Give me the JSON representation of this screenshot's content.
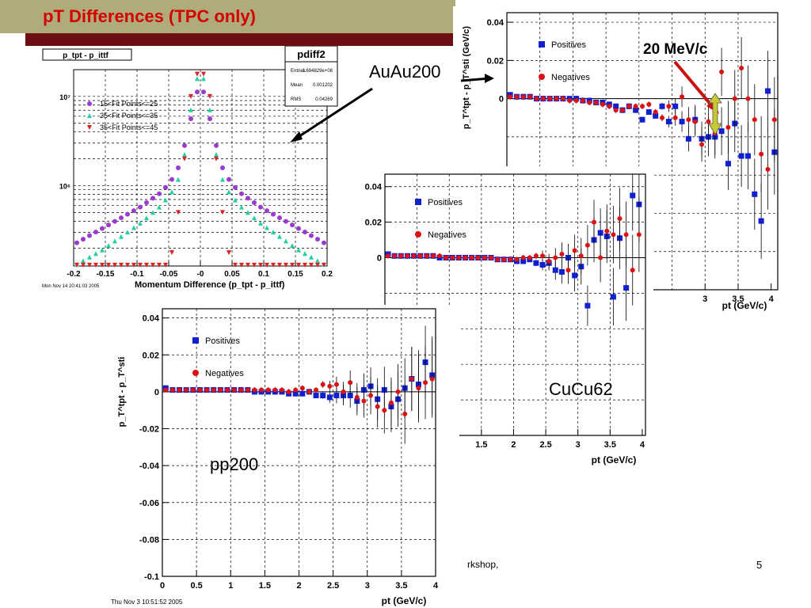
{
  "slide": {
    "title": "pT Differences (TPC only)",
    "footer_left": "rkshop,",
    "page_number": "5",
    "annotation_energy": "20 MeV/c",
    "label_auau": "AuAu200",
    "label_cucu": "CuCu62",
    "label_pp": "pp200",
    "arrow_color": "#cc1111",
    "arrow_box_color": "#c8c832"
  },
  "chart_data": [
    {
      "id": "pdiff",
      "type": "scatter",
      "canvas_title": "p_tpt - p_ittf",
      "stats_title": "pdiff2",
      "stats": [
        [
          "Entries",
          "1.694829e+08"
        ],
        [
          "Mean",
          "0.001202"
        ],
        [
          "RMS",
          "0.04269"
        ]
      ],
      "xlabel": "Momentum Difference (p_tpt - p_ittf)",
      "timestamp": "Mon Nov 14 20:41:03 2005",
      "xlim": [
        -0.2,
        0.2
      ],
      "ylog": true,
      "ylim_log10": [
        5.1,
        7.3
      ],
      "xticks": [
        "-0.2",
        "-0.15",
        "-0.1",
        "-0.05",
        "-0",
        "0.05",
        "0.1",
        "0.15",
        "0.2"
      ],
      "yticks": [
        "10⁶",
        "10⁷"
      ],
      "series": [
        {
          "name": "15<Fit Points<=25",
          "color": "#9a3ad0",
          "marker": "circle",
          "x": [
            -0.195,
            -0.185,
            -0.175,
            -0.165,
            -0.155,
            -0.145,
            -0.135,
            -0.125,
            -0.115,
            -0.105,
            -0.095,
            -0.085,
            -0.075,
            -0.065,
            -0.055,
            -0.045,
            -0.035,
            -0.025,
            -0.015,
            -0.005,
            0.005,
            0.015,
            0.025,
            0.035,
            0.045,
            0.055,
            0.065,
            0.075,
            0.085,
            0.095,
            0.105,
            0.115,
            0.125,
            0.135,
            0.145,
            0.155,
            0.165,
            0.175,
            0.185,
            0.195
          ],
          "y": [
            5.36,
            5.4,
            5.44,
            5.48,
            5.52,
            5.56,
            5.6,
            5.64,
            5.68,
            5.72,
            5.76,
            5.81,
            5.86,
            5.91,
            5.98,
            6.07,
            6.2,
            6.45,
            6.75,
            7.05,
            7.05,
            6.75,
            6.45,
            6.2,
            6.07,
            5.98,
            5.91,
            5.86,
            5.81,
            5.76,
            5.72,
            5.68,
            5.64,
            5.6,
            5.56,
            5.52,
            5.48,
            5.44,
            5.4,
            5.36
          ]
        },
        {
          "name": "25<Fit Points<=35",
          "color": "#20d0a0",
          "marker": "triangle",
          "x": [
            -0.195,
            -0.185,
            -0.175,
            -0.165,
            -0.155,
            -0.145,
            -0.135,
            -0.125,
            -0.115,
            -0.105,
            -0.095,
            -0.085,
            -0.075,
            -0.065,
            -0.055,
            -0.045,
            -0.035,
            -0.025,
            -0.015,
            -0.005,
            0.005,
            0.015,
            0.025,
            0.035,
            0.045,
            0.055,
            0.065,
            0.075,
            0.085,
            0.095,
            0.105,
            0.115,
            0.125,
            0.135,
            0.145,
            0.155,
            0.165,
            0.175,
            0.185,
            0.195
          ],
          "y": [
            5.12,
            5.16,
            5.2,
            5.24,
            5.28,
            5.33,
            5.38,
            5.43,
            5.48,
            5.53,
            5.58,
            5.64,
            5.7,
            5.76,
            5.84,
            5.93,
            6.07,
            6.35,
            6.85,
            7.2,
            7.2,
            6.85,
            6.35,
            6.07,
            5.93,
            5.84,
            5.76,
            5.7,
            5.64,
            5.58,
            5.53,
            5.48,
            5.43,
            5.38,
            5.33,
            5.28,
            5.24,
            5.2,
            5.16,
            5.12
          ]
        },
        {
          "name": "35<Fit Points<=45",
          "color": "#e02020",
          "marker": "triangle-down",
          "x": [
            -0.195,
            -0.185,
            -0.175,
            -0.165,
            -0.155,
            -0.145,
            -0.135,
            -0.125,
            -0.115,
            -0.105,
            -0.095,
            -0.085,
            -0.075,
            -0.065,
            -0.055,
            -0.045,
            -0.035,
            -0.025,
            -0.015,
            -0.005,
            0.005,
            0.015,
            0.025,
            0.035,
            0.045,
            0.055,
            0.065,
            0.075,
            0.085,
            0.095,
            0.105,
            0.115,
            0.125,
            0.135,
            0.145,
            0.155,
            0.165,
            0.175,
            0.185,
            0.195
          ],
          "y": [
            5.11,
            5.11,
            5.11,
            5.11,
            5.11,
            5.11,
            5.11,
            5.11,
            5.11,
            5.11,
            5.11,
            5.11,
            5.11,
            5.11,
            5.11,
            5.25,
            5.7,
            6.3,
            7.0,
            7.25,
            7.25,
            7.0,
            6.3,
            5.7,
            5.25,
            5.11,
            5.11,
            5.11,
            5.11,
            5.11,
            5.11,
            5.11,
            5.11,
            5.11,
            5.11,
            5.11,
            5.11,
            5.11,
            5.11,
            5.11
          ]
        }
      ]
    },
    {
      "id": "auau",
      "type": "scatter",
      "ylabel": "p_T^tpt - p_T^sti (GeV/c)",
      "xlabel": "pt (GeV/c)",
      "xlim": [
        0,
        4.1
      ],
      "ylim": [
        -0.1,
        0.045
      ],
      "xticks": [
        3,
        3.5,
        4
      ],
      "yticks": [
        0.04,
        0.02,
        0
      ],
      "series": [
        {
          "name": "Positives",
          "color": "#1020d0",
          "marker": "square",
          "x": [
            0.05,
            0.15,
            0.25,
            0.35,
            0.45,
            0.55,
            0.65,
            0.75,
            0.85,
            0.95,
            1.05,
            1.15,
            1.25,
            1.35,
            1.45,
            1.55,
            1.65,
            1.75,
            1.85,
            1.95,
            2.05,
            2.15,
            2.25,
            2.35,
            2.45,
            2.55,
            2.65,
            2.75,
            2.85,
            2.95,
            3.05,
            3.15,
            3.25,
            3.35,
            3.45,
            3.55,
            3.65,
            3.75,
            3.85,
            3.95,
            4.05
          ],
          "y": [
            0.002,
            0.001,
            0.001,
            0.001,
            0.0,
            0.0,
            0.0,
            0.0,
            0.0,
            0.0,
            0.0,
            -0.001,
            -0.001,
            -0.002,
            -0.002,
            -0.003,
            -0.004,
            -0.006,
            -0.004,
            -0.006,
            -0.011,
            -0.007,
            -0.009,
            -0.004,
            -0.012,
            -0.004,
            -0.012,
            -0.021,
            -0.011,
            -0.021,
            -0.02,
            -0.02,
            -0.017,
            -0.034,
            -0.013,
            -0.03,
            -0.03,
            -0.05,
            -0.064,
            0.004,
            -0.028
          ]
        },
        {
          "name": "Negatives",
          "color": "#dd1111",
          "marker": "circle",
          "x": [
            0.05,
            0.15,
            0.25,
            0.35,
            0.45,
            0.55,
            0.65,
            0.75,
            0.85,
            0.95,
            1.05,
            1.15,
            1.25,
            1.35,
            1.45,
            1.55,
            1.65,
            1.75,
            1.85,
            1.95,
            2.05,
            2.15,
            2.25,
            2.35,
            2.45,
            2.55,
            2.65,
            2.75,
            2.85,
            2.95,
            3.05,
            3.15,
            3.25,
            3.35,
            3.45,
            3.55,
            3.65,
            3.75,
            3.85,
            3.95,
            4.05
          ],
          "y": [
            0.001,
            0.001,
            0.001,
            0.001,
            0.0,
            0.0,
            0.0,
            0.0,
            0.0,
            -0.001,
            -0.001,
            -0.001,
            -0.002,
            -0.002,
            -0.003,
            -0.004,
            -0.006,
            -0.006,
            -0.004,
            -0.004,
            -0.004,
            -0.003,
            -0.007,
            -0.01,
            -0.004,
            -0.01,
            0.001,
            -0.011,
            -0.012,
            -0.024,
            -0.012,
            -0.018,
            0.014,
            -0.015,
            0.0,
            0.016,
            0.0,
            -0.011,
            -0.029,
            -0.037,
            -0.011
          ]
        }
      ]
    },
    {
      "id": "cucu",
      "type": "scatter",
      "xlabel": "pt (GeV/c)",
      "xlim": [
        0,
        4.05
      ],
      "ylim": [
        -0.1,
        0.047
      ],
      "xticks": [
        1.5,
        2,
        2.5,
        3,
        3.5,
        4
      ],
      "yticks": [
        0.04,
        0.02,
        0
      ],
      "series": [
        {
          "name": "Positives",
          "color": "#1020d0",
          "marker": "square",
          "x": [
            0.05,
            0.15,
            0.25,
            0.35,
            0.45,
            0.55,
            0.65,
            0.75,
            0.85,
            0.95,
            1.05,
            1.15,
            1.25,
            1.35,
            1.45,
            1.55,
            1.65,
            1.75,
            1.85,
            1.95,
            2.05,
            2.15,
            2.25,
            2.35,
            2.45,
            2.55,
            2.65,
            2.75,
            2.85,
            2.95,
            3.05,
            3.15,
            3.25,
            3.35,
            3.45,
            3.55,
            3.65,
            3.75,
            3.85,
            3.95
          ],
          "y": [
            0.002,
            0.001,
            0.001,
            0.001,
            0.001,
            0.001,
            0.001,
            0.001,
            0.0,
            0.0,
            0.0,
            0.0,
            0.0,
            0.0,
            0.0,
            0.0,
            0.0,
            -0.001,
            -0.001,
            -0.001,
            -0.002,
            -0.002,
            -0.001,
            -0.003,
            -0.004,
            -0.003,
            -0.007,
            -0.008,
            0.0,
            -0.01,
            -0.005,
            -0.027,
            0.01,
            0.014,
            0.012,
            -0.022,
            0.011,
            -0.017,
            0.035,
            0.03
          ]
        },
        {
          "name": "Negatives",
          "color": "#dd1111",
          "marker": "circle",
          "x": [
            0.05,
            0.15,
            0.25,
            0.35,
            0.45,
            0.55,
            0.65,
            0.75,
            0.85,
            0.95,
            1.05,
            1.15,
            1.25,
            1.35,
            1.45,
            1.55,
            1.65,
            1.75,
            1.85,
            1.95,
            2.05,
            2.15,
            2.25,
            2.35,
            2.45,
            2.55,
            2.65,
            2.75,
            2.85,
            2.95,
            3.05,
            3.15,
            3.25,
            3.35,
            3.45,
            3.55,
            3.65,
            3.75,
            3.85,
            3.95
          ],
          "y": [
            0.001,
            0.001,
            0.001,
            0.001,
            0.001,
            0.001,
            0.001,
            0.001,
            0.001,
            0.0,
            0.0,
            0.0,
            0.0,
            0.0,
            0.0,
            0.0,
            0.0,
            -0.001,
            -0.001,
            -0.001,
            -0.001,
            0.0,
            0.0,
            0.001,
            0.001,
            -0.002,
            0.0,
            0.002,
            -0.007,
            0.004,
            0.001,
            0.007,
            0.02,
            0.0,
            0.015,
            0.013,
            0.022,
            0.013,
            -0.007,
            0.013
          ]
        }
      ]
    },
    {
      "id": "pp",
      "type": "scatter",
      "ylabel": "p_T^tpt - p_T^sti",
      "xlabel": "pt (GeV/c)",
      "timestamp": "Thu Nov  3 10:51:52 2005",
      "xlim": [
        0,
        4
      ],
      "ylim": [
        -0.1,
        0.045
      ],
      "xticks": [
        0,
        0.5,
        1,
        1.5,
        2,
        2.5,
        3,
        3.5,
        4
      ],
      "yticks": [
        0.04,
        0.02,
        0,
        -0.02,
        -0.04,
        -0.06,
        -0.08,
        -0.1
      ],
      "series": [
        {
          "name": "Positives",
          "color": "#1020d0",
          "marker": "square",
          "x": [
            0.05,
            0.15,
            0.25,
            0.35,
            0.45,
            0.55,
            0.65,
            0.75,
            0.85,
            0.95,
            1.05,
            1.15,
            1.25,
            1.35,
            1.45,
            1.55,
            1.65,
            1.75,
            1.85,
            1.95,
            2.05,
            2.15,
            2.25,
            2.35,
            2.45,
            2.55,
            2.65,
            2.75,
            2.85,
            2.95,
            3.05,
            3.15,
            3.25,
            3.35,
            3.45,
            3.55,
            3.65,
            3.75,
            3.85,
            3.95
          ],
          "y": [
            0.002,
            0.001,
            0.001,
            0.001,
            0.001,
            0.001,
            0.001,
            0.001,
            0.001,
            0.001,
            0.001,
            0.001,
            0.001,
            0.0,
            0.0,
            0.0,
            0.0,
            0.0,
            -0.001,
            -0.001,
            -0.001,
            0.0,
            -0.002,
            -0.002,
            -0.003,
            -0.002,
            -0.002,
            -0.002,
            -0.005,
            0.001,
            0.003,
            -0.004,
            0.001,
            -0.008,
            -0.004,
            0.002,
            0.007,
            0.004,
            0.016,
            0.009
          ]
        },
        {
          "name": "Negatives",
          "color": "#dd1111",
          "marker": "circle",
          "x": [
            0.05,
            0.15,
            0.25,
            0.35,
            0.45,
            0.55,
            0.65,
            0.75,
            0.85,
            0.95,
            1.05,
            1.15,
            1.25,
            1.35,
            1.45,
            1.55,
            1.65,
            1.75,
            1.85,
            1.95,
            2.05,
            2.15,
            2.25,
            2.35,
            2.45,
            2.55,
            2.65,
            2.75,
            2.85,
            2.95,
            3.05,
            3.15,
            3.25,
            3.35,
            3.45,
            3.55,
            3.65,
            3.75,
            3.85,
            3.95
          ],
          "y": [
            0.001,
            0.001,
            0.001,
            0.001,
            0.001,
            0.001,
            0.001,
            0.001,
            0.001,
            0.001,
            0.001,
            0.001,
            0.001,
            0.001,
            0.001,
            0.001,
            0.001,
            0.001,
            0.0,
            0.001,
            0.002,
            0.0,
            0.001,
            0.004,
            0.003,
            0.004,
            0.0,
            0.005,
            -0.003,
            -0.005,
            -0.002,
            -0.008,
            -0.01,
            -0.006,
            0.0,
            -0.012,
            0.007,
            0.002,
            0.005,
            0.007
          ]
        }
      ]
    }
  ]
}
